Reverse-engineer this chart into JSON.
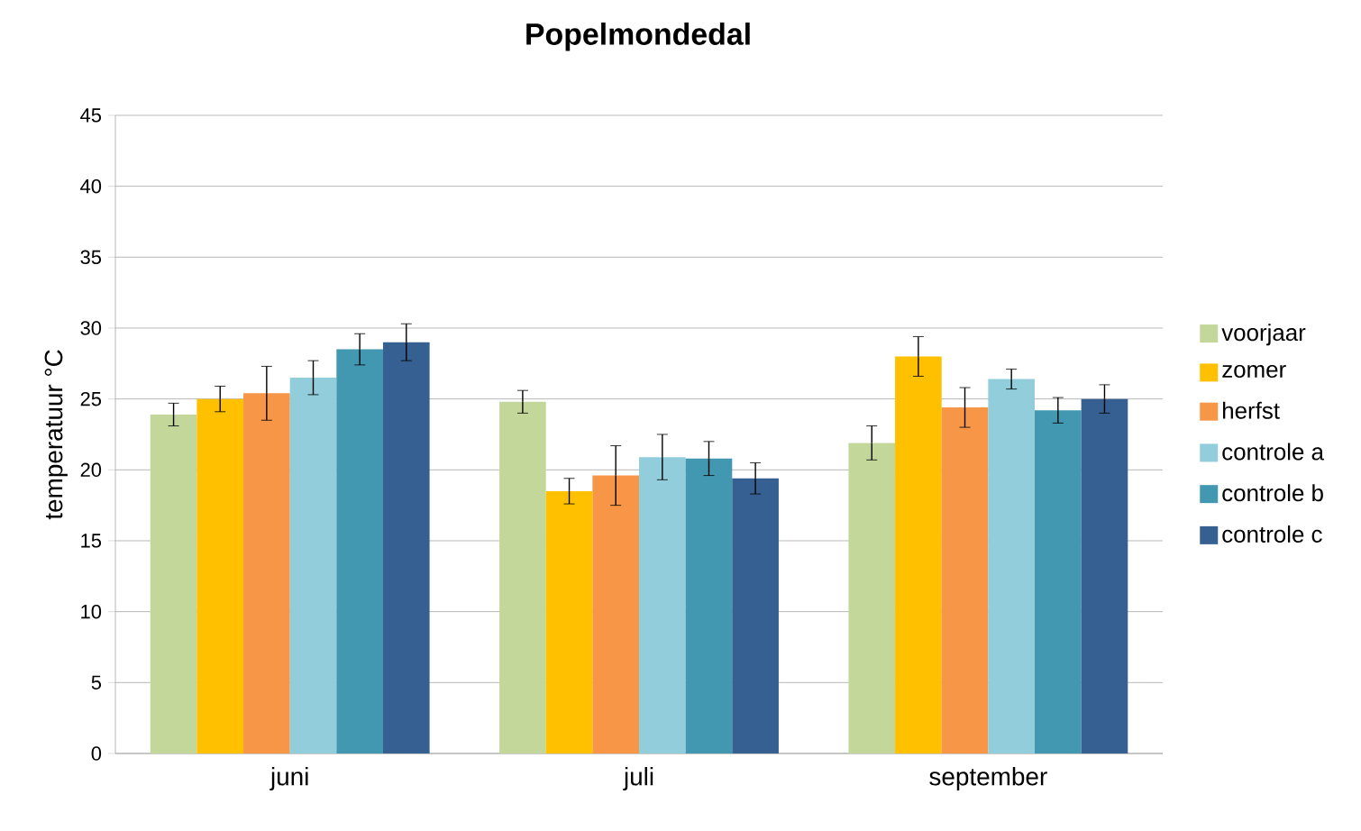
{
  "chart_data": {
    "type": "bar",
    "title": "Popelmondedal",
    "ylabel": "temperatuur  °C",
    "categories": [
      "juni",
      "juli",
      "september"
    ],
    "series": [
      {
        "name": "voorjaar",
        "color": "#c4d79b",
        "values": [
          23.9,
          24.8,
          21.9
        ],
        "errors": [
          0.8,
          0.8,
          1.2
        ]
      },
      {
        "name": "zomer",
        "color": "#ffc000",
        "values": [
          25.0,
          18.5,
          28.0
        ],
        "errors": [
          0.9,
          0.9,
          1.4
        ]
      },
      {
        "name": "herfst",
        "color": "#f79646",
        "values": [
          25.4,
          19.6,
          24.4
        ],
        "errors": [
          1.9,
          2.1,
          1.4
        ]
      },
      {
        "name": "controle a",
        "color": "#92cddc",
        "values": [
          26.5,
          20.9,
          26.4
        ],
        "errors": [
          1.2,
          1.6,
          0.7
        ]
      },
      {
        "name": "controle b",
        "color": "#4298b0",
        "values": [
          28.5,
          20.8,
          24.2
        ],
        "errors": [
          1.1,
          1.2,
          0.9
        ]
      },
      {
        "name": "controle c",
        "color": "#366092",
        "values": [
          29.0,
          19.4,
          25.0
        ],
        "errors": [
          1.3,
          1.1,
          1.0
        ]
      }
    ],
    "ylim": [
      0,
      45
    ],
    "yticks": [
      0,
      5,
      10,
      15,
      20,
      25,
      30,
      35,
      40,
      45
    ],
    "grid": "y",
    "legend": "right"
  }
}
